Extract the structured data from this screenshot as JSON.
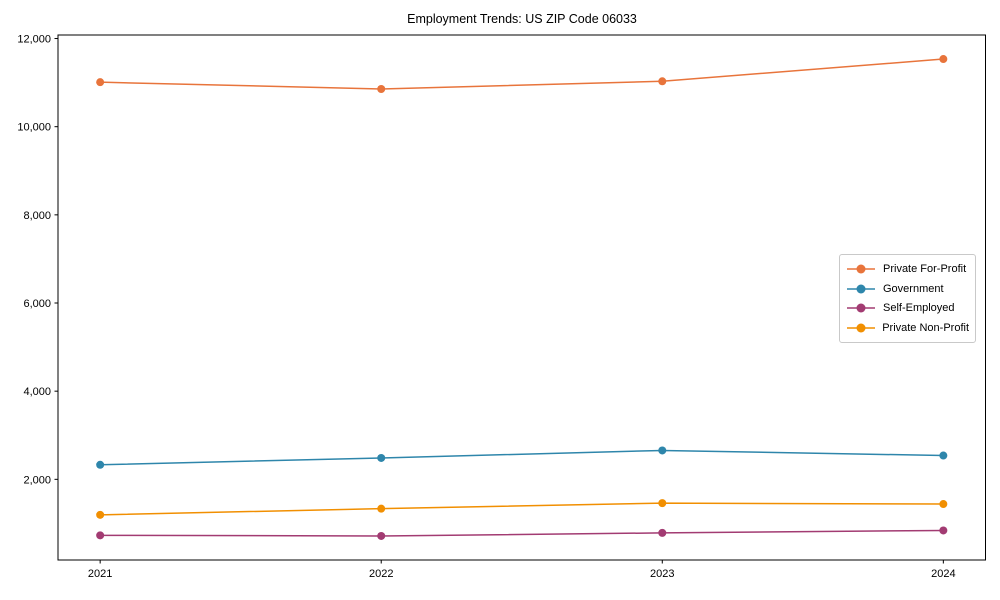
{
  "figure": {
    "background": "#ffffff",
    "axis_color": "#000000"
  },
  "chart_data": {
    "type": "line",
    "title": "Employment Trends: US ZIP Code 06033",
    "x": [
      2021,
      2022,
      2023,
      2024
    ],
    "x_tick_labels": [
      "2021",
      "2022",
      "2023",
      "2024"
    ],
    "series": [
      {
        "name": "Private For-Profit",
        "color": "#E8743B",
        "values": [
          11010,
          10855,
          11030,
          11535
        ]
      },
      {
        "name": "Government",
        "color": "#2E86AB",
        "values": [
          2330,
          2485,
          2655,
          2540
        ]
      },
      {
        "name": "Self-Employed",
        "color": "#A23B72",
        "values": [
          730,
          715,
          785,
          840
        ]
      },
      {
        "name": "Private Non-Profit",
        "color": "#F18F01",
        "values": [
          1195,
          1335,
          1460,
          1440
        ]
      }
    ],
    "yticks": [
      2000,
      4000,
      6000,
      8000,
      10000,
      12000
    ],
    "ytick_labels": [
      "2,000",
      "4,000",
      "6,000",
      "8,000",
      "10,000",
      "12,000"
    ],
    "xlim": [
      2020.85,
      2024.15
    ],
    "ylim": [
      170,
      12080
    ],
    "xlabel": "",
    "ylabel": "",
    "grid": false,
    "legend_position": "center-right",
    "marker": "circle",
    "line_width": 1.5,
    "marker_radius": 4
  }
}
